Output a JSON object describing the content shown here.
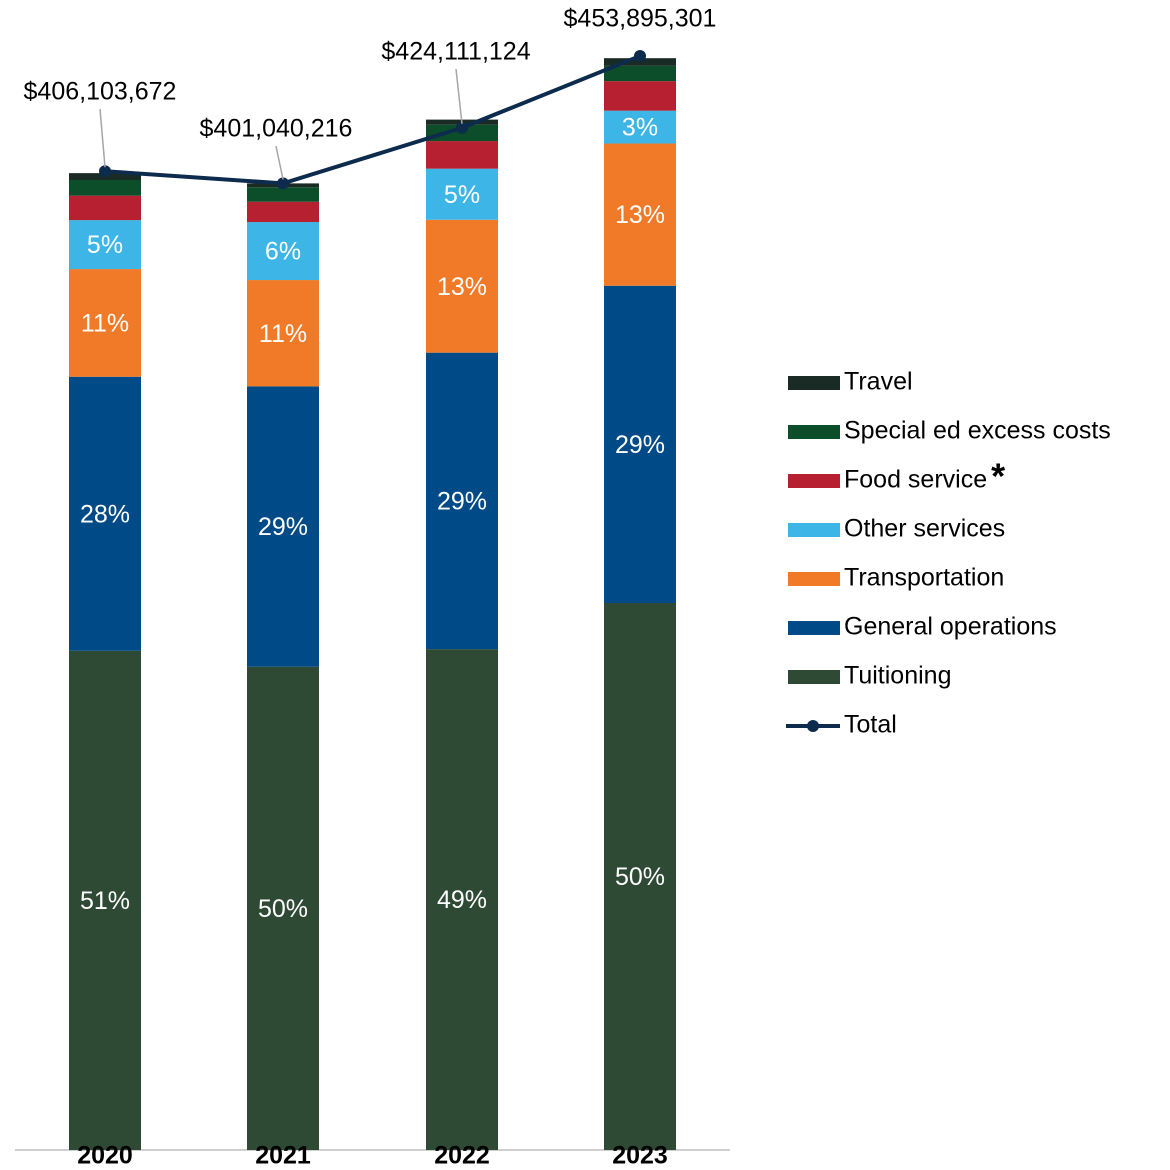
{
  "chart_data": {
    "type": "stacked_bar_line",
    "categories": [
      "2020",
      "2021",
      "2022",
      "2023"
    ],
    "series": [
      {
        "name": "Tuitioning",
        "color": "#2e4a35",
        "values": [
          51,
          50,
          49,
          50
        ],
        "value_labels": [
          "51%",
          "50%",
          "49%",
          "50%"
        ]
      },
      {
        "name": "General operations",
        "color": "#004a87",
        "values": [
          28,
          29,
          29,
          29
        ],
        "value_labels": [
          "28%",
          "29%",
          "29%",
          "29%"
        ]
      },
      {
        "name": "Transportation",
        "color": "#f07a28",
        "values": [
          11,
          11,
          13,
          13
        ],
        "value_labels": [
          "11%",
          "11%",
          "13%",
          "13%"
        ]
      },
      {
        "name": "Other services",
        "color": "#3db5e6",
        "values": [
          5,
          6,
          5,
          3
        ],
        "value_labels": [
          "5%",
          "6%",
          "5%",
          "3%"
        ]
      },
      {
        "name": "Food service",
        "color": "#b72030",
        "values": [
          2.5,
          2.1,
          2.7,
          2.7
        ],
        "value_labels": [
          null,
          null,
          null,
          null
        ]
      },
      {
        "name": "Special ed excess costs",
        "color": "#0c4d2a",
        "values": [
          1.6,
          1.5,
          1.6,
          1.4
        ],
        "value_labels": [
          null,
          null,
          null,
          null
        ]
      },
      {
        "name": "Travel",
        "color": "#1a2a24",
        "values": [
          0.7,
          0.4,
          0.5,
          0.7
        ],
        "value_labels": [
          null,
          null,
          null,
          null
        ]
      }
    ],
    "total": {
      "name": "Total",
      "color": "#0d2b4c",
      "values": [
        406103672,
        401040216,
        424111124,
        453895301
      ],
      "value_labels": [
        "$406,103,672",
        "$401,040,216",
        "$424,111,124",
        "$453,895,301"
      ]
    },
    "legend_note": "*"
  }
}
